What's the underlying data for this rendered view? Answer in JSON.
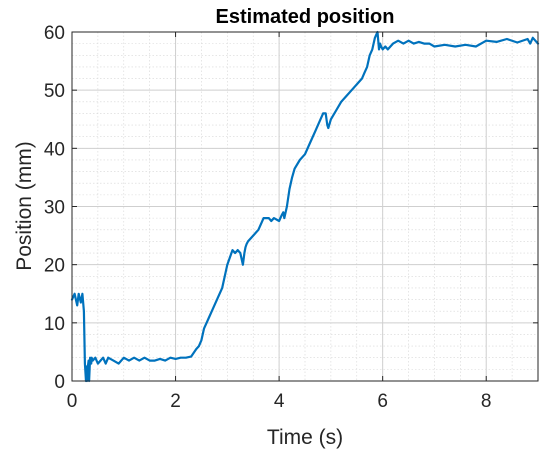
{
  "chart_data": {
    "type": "line",
    "title": "Estimated position",
    "xlabel": "Time (s)",
    "ylabel": "Position (mm)",
    "xlim": [
      0,
      9
    ],
    "ylim": [
      0,
      60
    ],
    "xticks": [
      0,
      2,
      4,
      6,
      8
    ],
    "yticks": [
      0,
      10,
      20,
      30,
      40,
      50,
      60
    ],
    "grid": true,
    "minor_grid": true,
    "line_color": "#0072BD",
    "series": [
      {
        "x": [
          0,
          0.05,
          0.1,
          0.13,
          0.17,
          0.2,
          0.23,
          0.25,
          0.27,
          0.28,
          0.29,
          0.3,
          0.32,
          0.33,
          0.35,
          0.37,
          0.38,
          0.4,
          0.45,
          0.5,
          0.55,
          0.6,
          0.65,
          0.7,
          0.8,
          0.9,
          1.0,
          1.1,
          1.2,
          1.3,
          1.4,
          1.5,
          1.6,
          1.7,
          1.8,
          1.9,
          2.0,
          2.1,
          2.2,
          2.3,
          2.4,
          2.45,
          2.5,
          2.55,
          2.6,
          2.65,
          2.7,
          2.8,
          2.9,
          3.0,
          3.1,
          3.15,
          3.2,
          3.25,
          3.3,
          3.33,
          3.35,
          3.37,
          3.4,
          3.45,
          3.5,
          3.6,
          3.7,
          3.8,
          3.85,
          3.9,
          4.0,
          4.05,
          4.08,
          4.1,
          4.15,
          4.2,
          4.25,
          4.3,
          4.4,
          4.5,
          4.6,
          4.7,
          4.8,
          4.85,
          4.9,
          4.93,
          4.95,
          5.0,
          5.1,
          5.2,
          5.3,
          5.4,
          5.5,
          5.6,
          5.65,
          5.7,
          5.75,
          5.8,
          5.85,
          5.9,
          5.93,
          5.95,
          5.97,
          6.0,
          6.05,
          6.1,
          6.2,
          6.3,
          6.4,
          6.5,
          6.6,
          6.7,
          6.8,
          6.9,
          7.0,
          7.2,
          7.4,
          7.6,
          7.8,
          8.0,
          8.2,
          8.4,
          8.6,
          8.8,
          8.85,
          8.9,
          9.0
        ],
        "y": [
          14,
          15,
          13,
          15,
          13.5,
          15,
          12,
          3,
          0,
          2.5,
          0,
          2,
          3.5,
          0,
          4,
          3,
          4,
          3.5,
          4,
          3,
          3.5,
          4,
          3,
          4,
          3.5,
          3,
          4,
          3.5,
          4,
          3.5,
          4,
          3.5,
          3.5,
          3.8,
          3.5,
          4,
          3.8,
          4,
          4,
          4.2,
          5.5,
          6,
          7,
          9,
          10,
          11,
          12,
          14,
          16,
          20,
          22.5,
          22,
          22.5,
          22,
          20,
          22,
          23,
          23.5,
          24,
          24.5,
          25,
          26,
          28,
          28,
          27.5,
          28,
          27.5,
          28.5,
          29,
          28,
          30,
          33,
          35,
          36.5,
          38,
          39,
          41,
          43,
          45,
          46,
          46,
          44,
          43.5,
          45,
          46.5,
          48,
          49,
          50,
          51,
          52,
          53,
          54,
          56,
          57,
          59,
          60,
          57,
          58,
          57.5,
          57,
          57.5,
          57,
          58,
          58.5,
          58,
          58.5,
          58,
          58.3,
          58,
          58,
          57.5,
          57.8,
          57.5,
          57.8,
          57.5,
          58.5,
          58.3,
          58.8,
          58.2,
          58.8,
          58,
          59,
          58
        ]
      }
    ]
  }
}
